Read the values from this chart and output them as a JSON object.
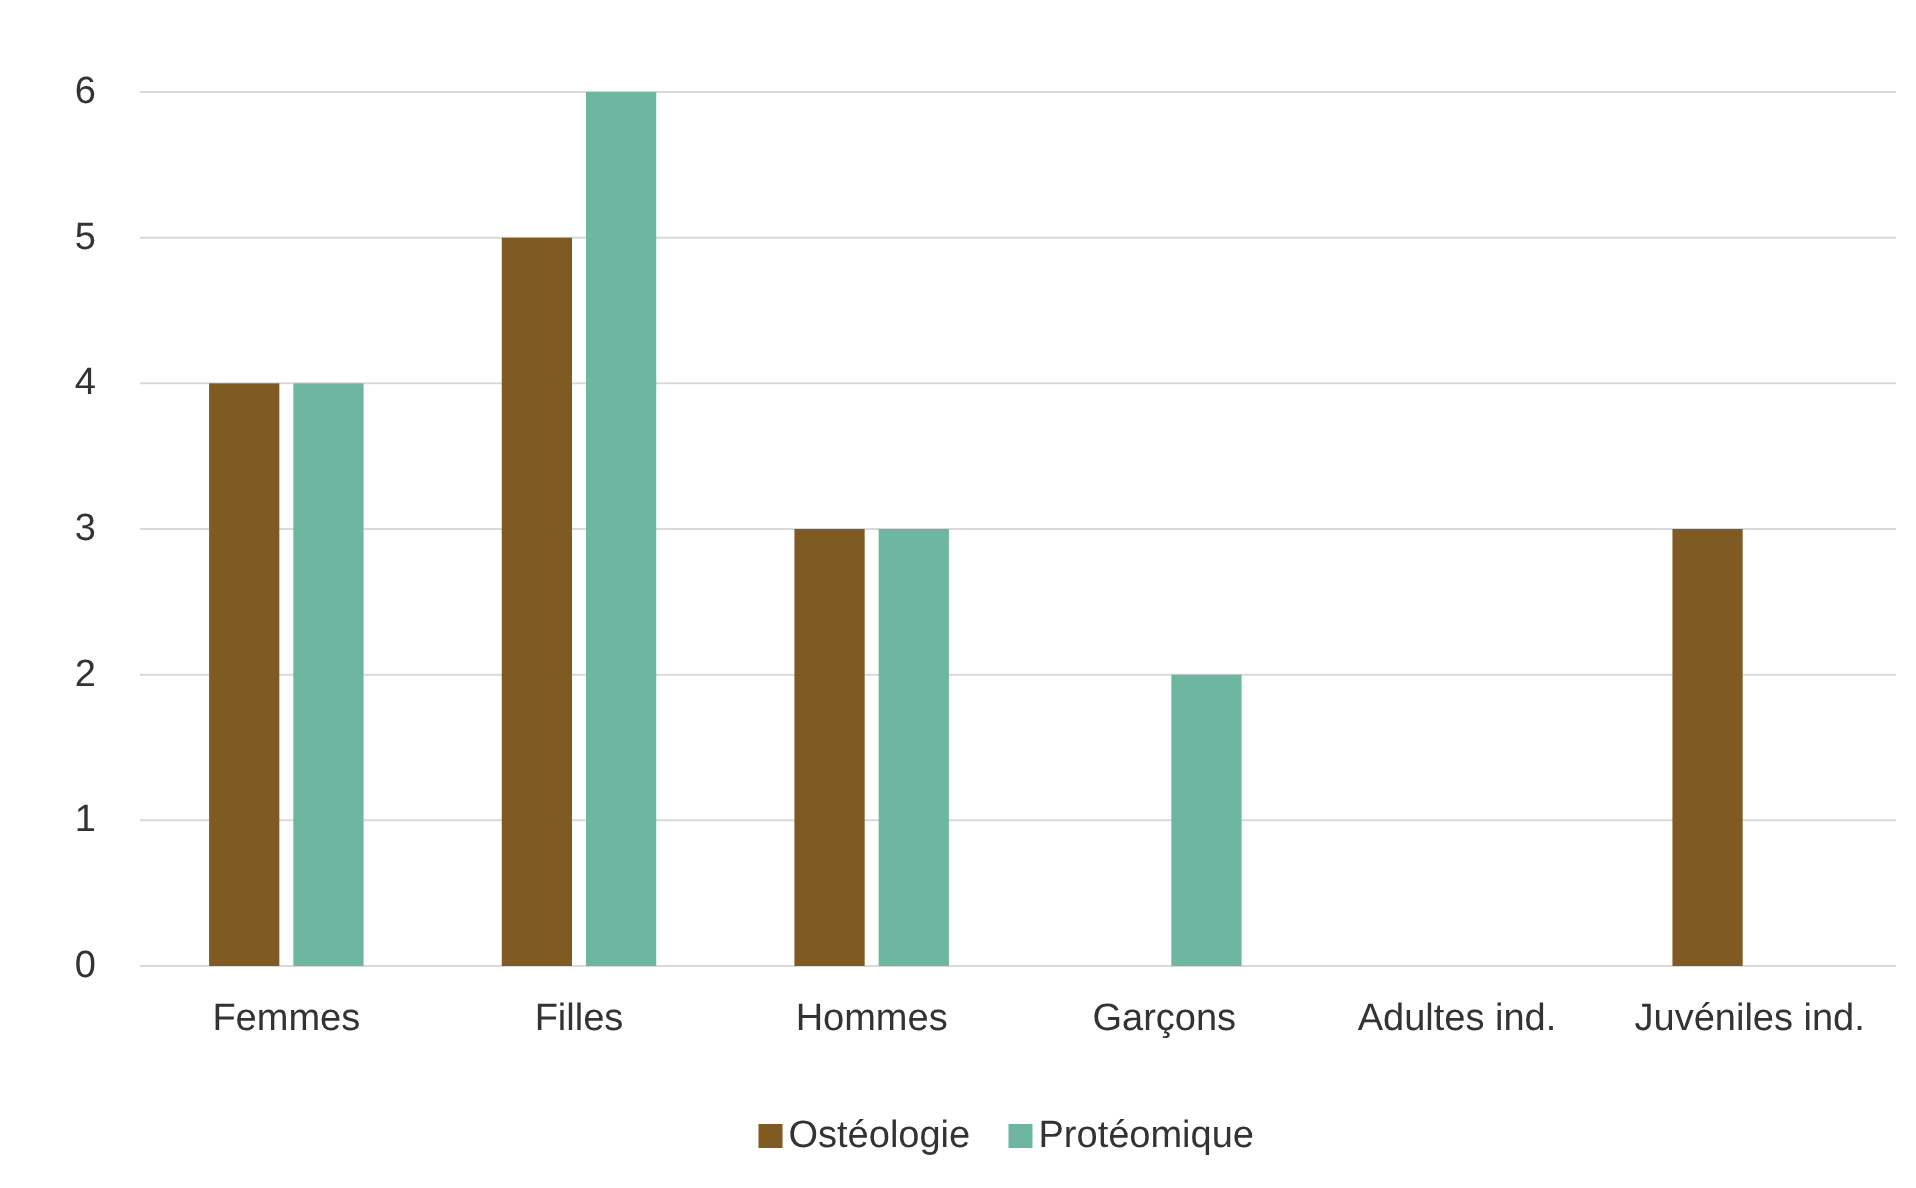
{
  "chart_data": {
    "type": "bar",
    "categories": [
      "Femmes",
      "Filles",
      "Hommes",
      "Garçons",
      "Adultes ind.",
      "Juvéniles ind."
    ],
    "series": [
      {
        "name": "Ostéologie",
        "color": "#7f5a22",
        "values": [
          4,
          5,
          3,
          0,
          0,
          3
        ]
      },
      {
        "name": "Protéomique",
        "color": "#6db6a0",
        "values": [
          4,
          6,
          3,
          2,
          0,
          0
        ]
      }
    ],
    "ylim": [
      0,
      6
    ],
    "yticks": [
      0,
      1,
      2,
      3,
      4,
      5,
      6
    ],
    "grid": "y",
    "legend": "bottom"
  }
}
